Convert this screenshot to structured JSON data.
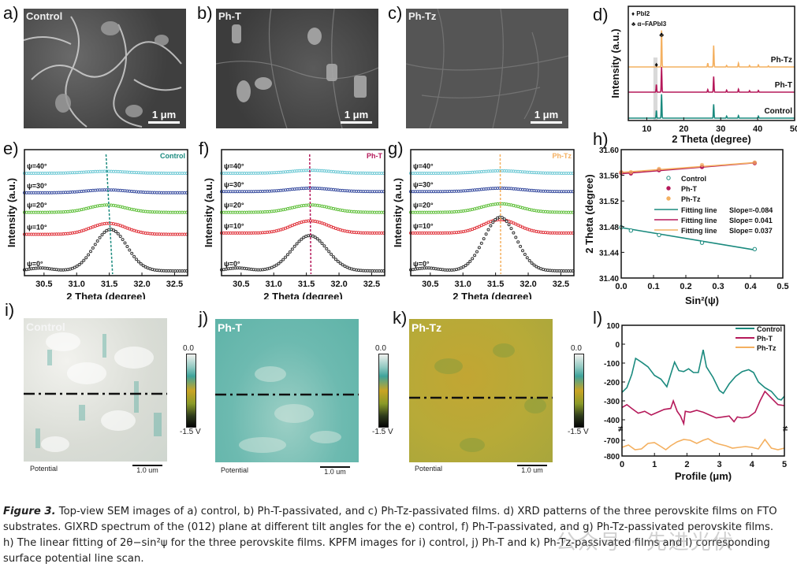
{
  "panel_labels": {
    "a": "a)",
    "b": "b)",
    "c": "c)",
    "d": "d)",
    "e": "e)",
    "f": "f)",
    "g": "g)",
    "h": "h)",
    "i": "i)",
    "j": "j)",
    "k": "k)",
    "l": "l)"
  },
  "sem": [
    {
      "title": "Control",
      "scale": "1 μm"
    },
    {
      "title": "Ph-T",
      "scale": "1 μm"
    },
    {
      "title": "Ph-Tz",
      "scale": "1 μm"
    }
  ],
  "kpfm": [
    {
      "title": "Control",
      "footer": "Potential",
      "scale": "1.0 um",
      "cbar_top": "0.0",
      "cbar_bottom": "-1.5 V"
    },
    {
      "title": "Ph-T",
      "footer": "Potential",
      "scale": "1.0 um",
      "cbar_top": "0.0",
      "cbar_bottom": "-1.5 V"
    },
    {
      "title": "Ph-Tz",
      "footer": "Potential",
      "scale": "1.0 um",
      "cbar_top": "0.0",
      "cbar_bottom": "-1.5 V"
    }
  ],
  "colors": {
    "control": "#1a8a7e",
    "ph_t": "#b5195a",
    "ph_tz": "#f4b060",
    "psi40": "#6cc8d4",
    "psi30": "#3a4ea0",
    "psi20": "#5fbf3a",
    "psi10": "#e0323a",
    "psi0": "#333333"
  },
  "chart_data": [
    {
      "id": "d",
      "type": "line",
      "title": "",
      "xlabel": "2 Theta (degree)",
      "ylabel": "Intensity (a.u.)",
      "xlim": [
        5,
        50
      ],
      "xticks": [
        10,
        20,
        30,
        40,
        50
      ],
      "legend": [
        {
          "symbol": "♦",
          "label": "PbI2"
        },
        {
          "symbol": "♣",
          "label": "α−FAPbI3"
        }
      ],
      "highlight_region": [
        11.8,
        12.9
      ],
      "series": [
        {
          "name": "Control",
          "offset": 0,
          "peaks": [
            [
              12.6,
              0.3
            ],
            [
              14.0,
              0.95
            ],
            [
              28.1,
              0.55
            ],
            [
              31.6,
              0.08
            ],
            [
              34.8,
              0.1
            ],
            [
              40.2,
              0.08
            ]
          ]
        },
        {
          "name": "Ph-T",
          "offset": 1,
          "peaks": [
            [
              12.6,
              0.3
            ],
            [
              14.0,
              1.0
            ],
            [
              26.5,
              0.1
            ],
            [
              28.1,
              0.62
            ],
            [
              31.6,
              0.08
            ],
            [
              34.8,
              0.12
            ],
            [
              37.8,
              0.06
            ],
            [
              40.2,
              0.07
            ]
          ]
        },
        {
          "name": "Ph-Tz",
          "offset": 2,
          "peaks": [
            [
              14.0,
              1.45
            ],
            [
              26.5,
              0.15
            ],
            [
              28.1,
              0.85
            ],
            [
              31.6,
              0.06
            ],
            [
              34.8,
              0.15
            ],
            [
              37.8,
              0.06
            ],
            [
              40.2,
              0.08
            ],
            [
              42.9,
              0.04
            ]
          ]
        }
      ],
      "annotations": [
        {
          "x": 12.6,
          "symbol": "♦"
        },
        {
          "x": 14.0,
          "symbol": "♣"
        }
      ]
    },
    {
      "id": "e",
      "type": "scatter",
      "title": "Control",
      "xlabel": "2 Theta (degree)",
      "ylabel": "Intensity (a.u.)",
      "xlim": [
        30.2,
        32.7
      ],
      "xticks": [
        30.5,
        31.0,
        31.5,
        32.0,
        32.5
      ],
      "guide_line": [
        31.45,
        31.55
      ],
      "series": [
        {
          "name": "ψ=40°",
          "center": 31.45,
          "amp": 0.08,
          "base": 4.0,
          "width": 0.45
        },
        {
          "name": "ψ=30°",
          "center": 31.46,
          "amp": 0.12,
          "base": 3.2,
          "width": 0.45
        },
        {
          "name": "ψ=20°",
          "center": 31.47,
          "amp": 0.3,
          "base": 2.4,
          "width": 0.4
        },
        {
          "name": "ψ=10°",
          "center": 31.49,
          "amp": 0.45,
          "base": 1.5,
          "width": 0.38
        },
        {
          "name": "ψ=0°",
          "center": 31.52,
          "amp": 1.7,
          "base": 0.0,
          "width": 0.35
        }
      ]
    },
    {
      "id": "f",
      "type": "scatter",
      "title": "Ph-T",
      "xlabel": "2 Theta (degree)",
      "ylabel": "Intensity (a.u.)",
      "xlim": [
        30.2,
        32.7
      ],
      "xticks": [
        30.5,
        31.0,
        31.5,
        32.0,
        32.5
      ],
      "guide_line": [
        31.55,
        31.57
      ],
      "series": [
        {
          "name": "ψ=40°",
          "center": 31.57,
          "amp": 0.12,
          "base": 4.0,
          "width": 0.45
        },
        {
          "name": "ψ=30°",
          "center": 31.57,
          "amp": 0.14,
          "base": 3.25,
          "width": 0.45
        },
        {
          "name": "ψ=20°",
          "center": 31.57,
          "amp": 0.3,
          "base": 2.4,
          "width": 0.42
        },
        {
          "name": "ψ=10°",
          "center": 31.56,
          "amp": 0.5,
          "base": 1.55,
          "width": 0.4
        },
        {
          "name": "ψ=0°",
          "center": 31.55,
          "amp": 1.45,
          "base": 0.0,
          "width": 0.38
        }
      ]
    },
    {
      "id": "g",
      "type": "scatter",
      "title": "Ph-Tz",
      "xlabel": "2 Theta (degree)",
      "ylabel": "Intensity (a.u.)",
      "xlim": [
        30.2,
        32.7
      ],
      "xticks": [
        30.5,
        31.0,
        31.5,
        32.0,
        32.5
      ],
      "guide_line": [
        31.57,
        31.58
      ],
      "series": [
        {
          "name": "ψ=40°",
          "center": 31.58,
          "amp": 0.1,
          "base": 4.0,
          "width": 0.45
        },
        {
          "name": "ψ=30°",
          "center": 31.58,
          "amp": 0.14,
          "base": 3.25,
          "width": 0.45
        },
        {
          "name": "ψ=20°",
          "center": 31.58,
          "amp": 0.35,
          "base": 2.4,
          "width": 0.42
        },
        {
          "name": "ψ=10°",
          "center": 31.57,
          "amp": 0.55,
          "base": 1.55,
          "width": 0.38
        },
        {
          "name": "ψ=0°",
          "center": 31.57,
          "amp": 2.2,
          "base": 0.0,
          "width": 0.35
        }
      ]
    },
    {
      "id": "h",
      "type": "scatter",
      "title": "",
      "xlabel": "Sin²(ψ)",
      "ylabel": "2 Theta (degree)",
      "xlim": [
        0,
        0.5
      ],
      "ylim": [
        31.4,
        31.6
      ],
      "xticks": [
        0.0,
        0.1,
        0.2,
        0.3,
        0.4,
        0.5
      ],
      "yticks": [
        31.4,
        31.44,
        31.48,
        31.52,
        31.56,
        31.6
      ],
      "x": [
        0.0,
        0.03,
        0.117,
        0.25,
        0.413
      ],
      "series": [
        {
          "name": "Control",
          "values": [
            31.479,
            31.474,
            31.467,
            31.455,
            31.445
          ]
        },
        {
          "name": "Ph-T",
          "values": [
            31.564,
            31.563,
            31.568,
            31.573,
            31.579
          ]
        },
        {
          "name": "Ph-Tz",
          "values": [
            31.565,
            31.565,
            31.57,
            31.576,
            31.58
          ]
        }
      ],
      "fits": [
        {
          "label": "Fitting line",
          "slope_text": "Slope=-0.084",
          "slope": -0.084,
          "intercept": 31.4785
        },
        {
          "label": "Fitting line",
          "slope_text": "Slope= 0.041",
          "slope": 0.041,
          "intercept": 31.5625
        },
        {
          "label": "Fitting line",
          "slope_text": "Slope= 0.037",
          "slope": 0.037,
          "intercept": 31.5645
        }
      ]
    },
    {
      "id": "l",
      "type": "line",
      "title": "",
      "xlabel": "Profile (μm)",
      "ylabel": "",
      "xlim": [
        0,
        5
      ],
      "xticks": [
        0,
        1,
        2,
        3,
        4,
        5
      ],
      "yticks_upper": [
        100,
        0,
        -100,
        -200,
        -300,
        -400
      ],
      "yticks_lower": [
        -700,
        -800
      ],
      "axis_break": true,
      "series": [
        {
          "name": "Control",
          "x": [
            0,
            0.15,
            0.3,
            0.42,
            0.6,
            0.8,
            1.0,
            1.2,
            1.38,
            1.5,
            1.62,
            1.75,
            1.9,
            2.05,
            2.2,
            2.35,
            2.5,
            2.6,
            2.8,
            3.0,
            3.12,
            3.3,
            3.5,
            3.7,
            3.9,
            4.05,
            4.2,
            4.4,
            4.6,
            4.8,
            4.9,
            5.0
          ],
          "y": [
            -255,
            -230,
            -160,
            -75,
            -95,
            -120,
            -165,
            -185,
            -225,
            -160,
            -95,
            -140,
            -145,
            -130,
            -150,
            -150,
            -30,
            -120,
            -175,
            -245,
            -260,
            -210,
            -170,
            -145,
            -135,
            -150,
            -200,
            -230,
            -250,
            -290,
            -295,
            -275
          ]
        },
        {
          "name": "Ph-T",
          "x": [
            0,
            0.15,
            0.3,
            0.5,
            0.7,
            0.9,
            1.1,
            1.3,
            1.5,
            1.58,
            1.7,
            1.8,
            1.9,
            1.95,
            2.1,
            2.3,
            2.5,
            2.7,
            2.9,
            3.1,
            3.3,
            3.45,
            3.55,
            3.7,
            3.9,
            4.1,
            4.25,
            4.4,
            4.6,
            4.8,
            5.0
          ],
          "y": [
            -335,
            -320,
            -340,
            -365,
            -355,
            -375,
            -360,
            -345,
            -340,
            -300,
            -355,
            -380,
            -420,
            -355,
            -360,
            -350,
            -360,
            -375,
            -390,
            -385,
            -380,
            -410,
            -385,
            -390,
            -385,
            -360,
            -300,
            -250,
            -285,
            -320,
            -325
          ]
        },
        {
          "name": "Ph-Tz",
          "x": [
            0,
            0.2,
            0.4,
            0.6,
            0.8,
            1.0,
            1.2,
            1.35,
            1.5,
            1.7,
            1.9,
            2.1,
            2.3,
            2.5,
            2.65,
            2.85,
            3.0,
            3.2,
            3.4,
            3.6,
            3.8,
            4.0,
            4.2,
            4.4,
            4.6,
            4.8,
            5.0
          ],
          "y": [
            -745,
            -730,
            -760,
            -755,
            -720,
            -715,
            -740,
            -760,
            -735,
            -710,
            -695,
            -700,
            -720,
            -700,
            -690,
            -715,
            -725,
            -735,
            -750,
            -745,
            -740,
            -745,
            -755,
            -695,
            -750,
            -760,
            -750
          ]
        }
      ]
    }
  ],
  "caption": {
    "figure_label": "Figure 3.",
    "line1": " Top-view SEM images of a) control, b) Ph-T-passivated, and c) Ph-Tz-passivated films. d) XRD patterns of the three perovskite films on FTO",
    "line2": "substrates. GIXRD spectrum of the (012) plane at different tilt angles for the e) control, f) Ph-T-passivated, and g) Ph-Tz-passivated perovskite films.",
    "line3": "h) The linear fitting of 2θ−sin²ψ for the three perovskite films. KPFM images for i) control, j) Ph-T and k) Ph-Tz-passivated films and l) corresponding",
    "line4": "surface potential line scan."
  },
  "watermark": "公众号 · 先进光伏"
}
